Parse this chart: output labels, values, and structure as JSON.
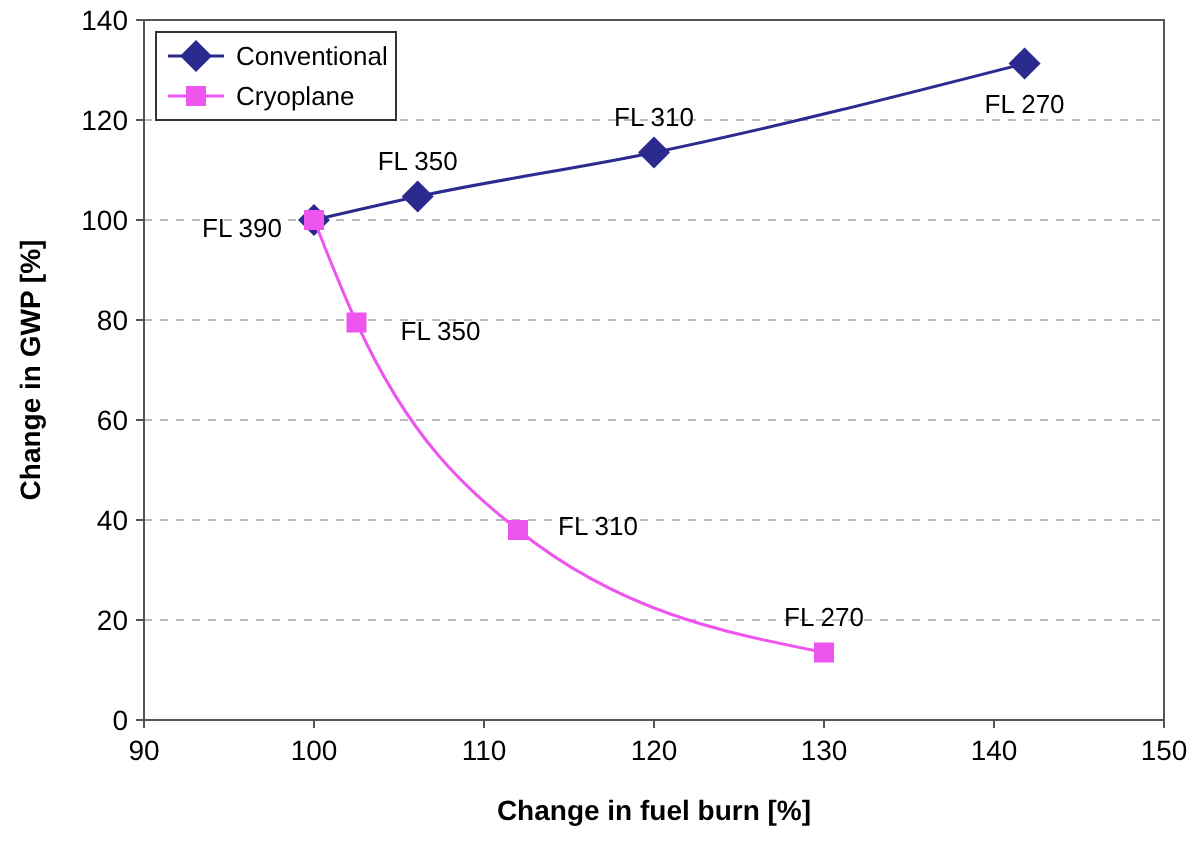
{
  "chart_data": {
    "type": "line",
    "xlabel": "Change in fuel burn [%]",
    "ylabel": "Change in GWP [%]",
    "xlim": [
      90,
      150
    ],
    "xticks": [
      90,
      100,
      110,
      120,
      130,
      140,
      150
    ],
    "ylim": [
      0,
      140
    ],
    "yticks": [
      0,
      20,
      40,
      60,
      80,
      100,
      120,
      140
    ],
    "grid": "y",
    "legend": "top left",
    "series": [
      {
        "name": "Conventional",
        "color": "#2b2a8f",
        "marker": "diamond",
        "x": [
          100,
          106.1,
          120,
          141.8
        ],
        "values": [
          100,
          104.7,
          113.5,
          131.3
        ]
      },
      {
        "name": "Cryoplane",
        "color": "#ee55ee",
        "marker": "square",
        "x": [
          100,
          102.5,
          112,
          130
        ],
        "values": [
          100,
          79.5,
          38,
          13.5
        ]
      }
    ],
    "annotations": [
      {
        "text": "FL 390",
        "x": 100,
        "y": 100
      },
      {
        "text": "FL 350",
        "x": 106.1,
        "y": 104.7
      },
      {
        "text": "FL 310",
        "x": 120,
        "y": 113.5
      },
      {
        "text": "FL 270",
        "x": 141.8,
        "y": 131.3
      },
      {
        "text": "FL 350",
        "x": 102.5,
        "y": 79.5
      },
      {
        "text": "FL 310",
        "x": 112,
        "y": 38
      },
      {
        "text": "FL 270",
        "x": 130,
        "y": 13.5
      }
    ]
  }
}
